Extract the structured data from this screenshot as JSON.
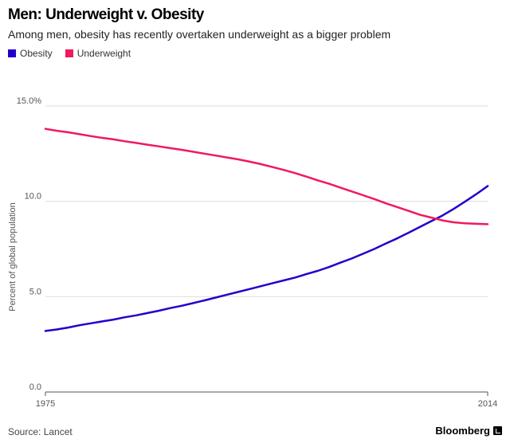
{
  "title": "Men: Underweight v. Obesity",
  "subtitle": "Among men, obesity has recently overtaken underweight as a bigger problem",
  "source": "Source: Lancet",
  "brand": "Bloomberg",
  "chart_data": {
    "type": "line",
    "title": "Men: Underweight v. Obesity",
    "subtitle": "Among men, obesity has recently overtaken underweight as a bigger problem",
    "xlabel": "",
    "ylabel": "Percent of global population",
    "xlim": [
      1975,
      2014
    ],
    "ylim": [
      0,
      15
    ],
    "yticks": [
      0,
      5,
      10,
      15
    ],
    "ytick_labels": [
      "0.0",
      "5.0",
      "10.0",
      "15.0%"
    ],
    "xtick_labels": [
      "1975",
      "2014"
    ],
    "grid": true,
    "legend_position": "top-left",
    "x": [
      1975,
      1976,
      1977,
      1978,
      1979,
      1980,
      1981,
      1982,
      1983,
      1984,
      1985,
      1986,
      1987,
      1988,
      1989,
      1990,
      1991,
      1992,
      1993,
      1994,
      1995,
      1996,
      1997,
      1998,
      1999,
      2000,
      2001,
      2002,
      2003,
      2004,
      2005,
      2006,
      2007,
      2008,
      2009,
      2010,
      2011,
      2012,
      2013,
      2014
    ],
    "series": [
      {
        "name": "Obesity",
        "color": "#2200cc",
        "values": [
          3.2,
          3.28,
          3.38,
          3.5,
          3.6,
          3.7,
          3.8,
          3.92,
          4.02,
          4.14,
          4.26,
          4.4,
          4.52,
          4.66,
          4.8,
          4.95,
          5.1,
          5.25,
          5.4,
          5.55,
          5.7,
          5.85,
          6.0,
          6.18,
          6.35,
          6.55,
          6.78,
          7.0,
          7.25,
          7.5,
          7.78,
          8.05,
          8.35,
          8.65,
          8.95,
          9.25,
          9.6,
          9.98,
          10.38,
          10.8
        ]
      },
      {
        "name": "Underweight",
        "color": "#f0195e",
        "values": [
          13.8,
          13.7,
          13.62,
          13.52,
          13.42,
          13.33,
          13.25,
          13.15,
          13.06,
          12.97,
          12.88,
          12.79,
          12.7,
          12.6,
          12.5,
          12.4,
          12.3,
          12.2,
          12.08,
          11.95,
          11.8,
          11.65,
          11.48,
          11.3,
          11.1,
          10.92,
          10.72,
          10.52,
          10.32,
          10.12,
          9.9,
          9.7,
          9.5,
          9.3,
          9.15,
          9.0,
          8.9,
          8.85,
          8.82,
          8.8
        ]
      }
    ]
  }
}
